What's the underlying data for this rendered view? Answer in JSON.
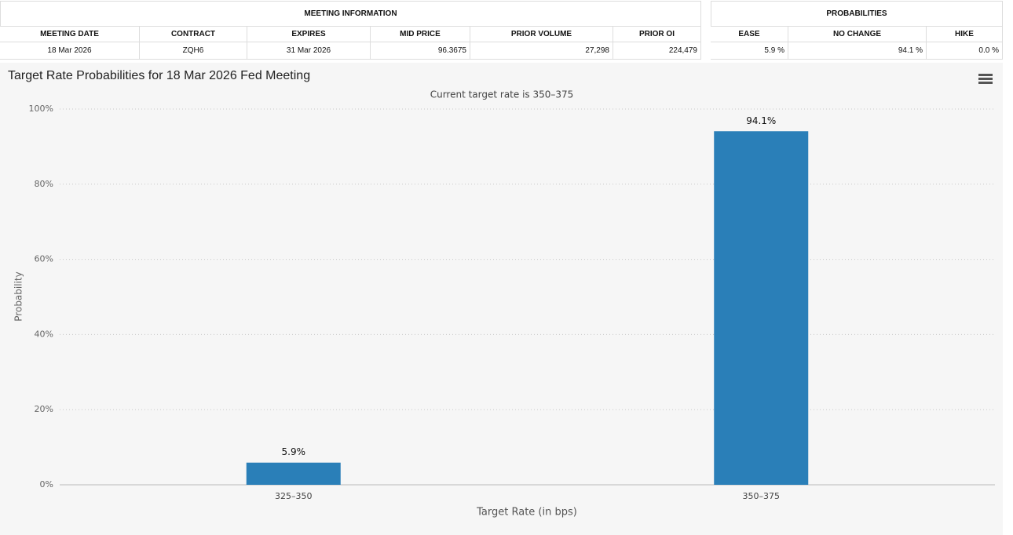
{
  "meeting_information": {
    "title": "MEETING INFORMATION",
    "columns": [
      "MEETING DATE",
      "CONTRACT",
      "EXPIRES",
      "MID PRICE",
      "PRIOR VOLUME",
      "PRIOR OI"
    ],
    "rows": [
      [
        "18 Mar 2026",
        "ZQH6",
        "31 Mar 2026",
        "96.3675",
        "27,298",
        "224,479"
      ]
    ]
  },
  "probabilities": {
    "title": "PROBABILITIES",
    "columns": [
      "EASE",
      "NO CHANGE",
      "HIKE"
    ],
    "rows": [
      [
        "5.9 %",
        "94.1 %",
        "0.0 %"
      ]
    ]
  },
  "chart_data": {
    "type": "bar",
    "title": "Target Rate Probabilities for 18 Mar 2026 Fed Meeting",
    "subtitle": "Current target rate is 350–375",
    "y_label": "Probability",
    "x_label": "Target Rate (in bps)",
    "categories": [
      "325–350",
      "350–375"
    ],
    "values": [
      5.9,
      94.1
    ],
    "value_labels": [
      "5.9%",
      "94.1%"
    ],
    "color": "#2a7fb8",
    "ylim": [
      0,
      100
    ],
    "yticks": [
      {
        "value": 0,
        "label": "0%"
      },
      {
        "value": 20,
        "label": "20%"
      },
      {
        "value": 40,
        "label": "40%"
      },
      {
        "value": 60,
        "label": "60%"
      },
      {
        "value": 80,
        "label": "80%"
      },
      {
        "value": 100,
        "label": "100%"
      }
    ],
    "grid": true
  }
}
